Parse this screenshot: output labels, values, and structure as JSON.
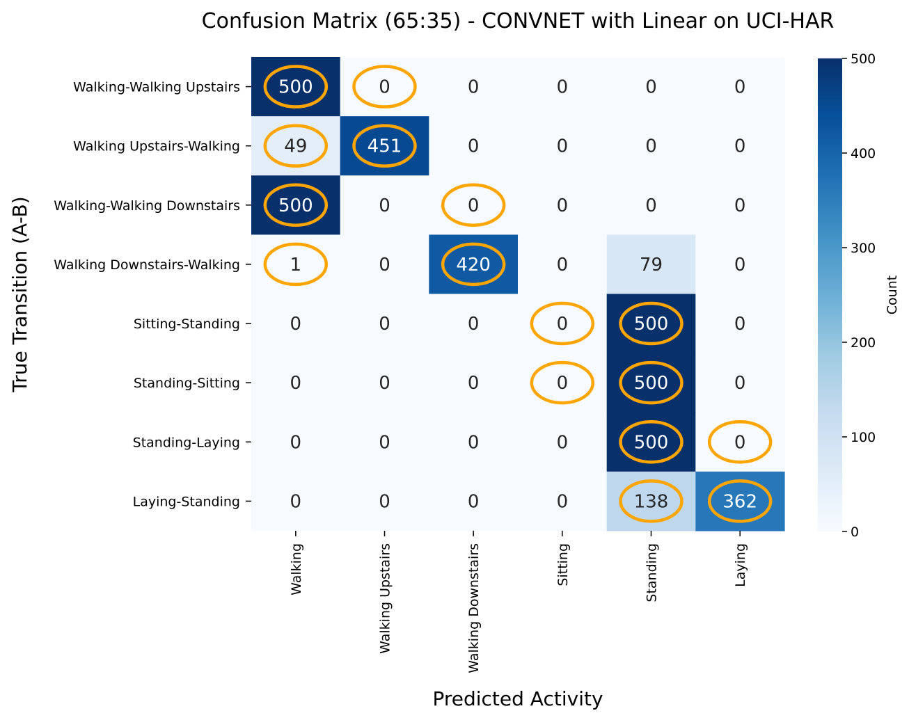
{
  "chart_data": {
    "type": "heatmap",
    "title": "Confusion Matrix (65:35) - CONVNET with Linear on UCI-HAR",
    "xlabel": "Predicted Activity",
    "ylabel": "True Transition (A-B)",
    "x_categories": [
      "Walking",
      "Walking Upstairs",
      "Walking Downstairs",
      "Sitting",
      "Standing",
      "Laying"
    ],
    "y_categories": [
      "Walking-Walking Upstairs",
      "Walking Upstairs-Walking",
      "Walking-Walking Downstairs",
      "Walking Downstairs-Walking",
      "Sitting-Standing",
      "Standing-Sitting",
      "Standing-Laying",
      "Laying-Standing"
    ],
    "values": [
      [
        500,
        0,
        0,
        0,
        0,
        0
      ],
      [
        49,
        451,
        0,
        0,
        0,
        0
      ],
      [
        500,
        0,
        0,
        0,
        0,
        0
      ],
      [
        1,
        0,
        420,
        0,
        79,
        0
      ],
      [
        0,
        0,
        0,
        0,
        500,
        0
      ],
      [
        0,
        0,
        0,
        0,
        500,
        0
      ],
      [
        0,
        0,
        0,
        0,
        500,
        0
      ],
      [
        0,
        0,
        0,
        0,
        138,
        362
      ]
    ],
    "highlighted_cells": [
      [
        0,
        0
      ],
      [
        0,
        1
      ],
      [
        1,
        0
      ],
      [
        1,
        1
      ],
      [
        2,
        0
      ],
      [
        2,
        2
      ],
      [
        3,
        0
      ],
      [
        3,
        2
      ],
      [
        4,
        3
      ],
      [
        4,
        4
      ],
      [
        5,
        3
      ],
      [
        5,
        4
      ],
      [
        6,
        4
      ],
      [
        6,
        5
      ],
      [
        7,
        4
      ],
      [
        7,
        5
      ]
    ],
    "colorbar": {
      "label": "Count",
      "min": 0,
      "max": 500,
      "ticks": [
        0,
        100,
        200,
        300,
        400,
        500
      ],
      "colormap": "Blues"
    },
    "colors": {
      "highlight": "#FFA500",
      "text_dark": "#262626",
      "text_light": "#ffffff"
    }
  }
}
